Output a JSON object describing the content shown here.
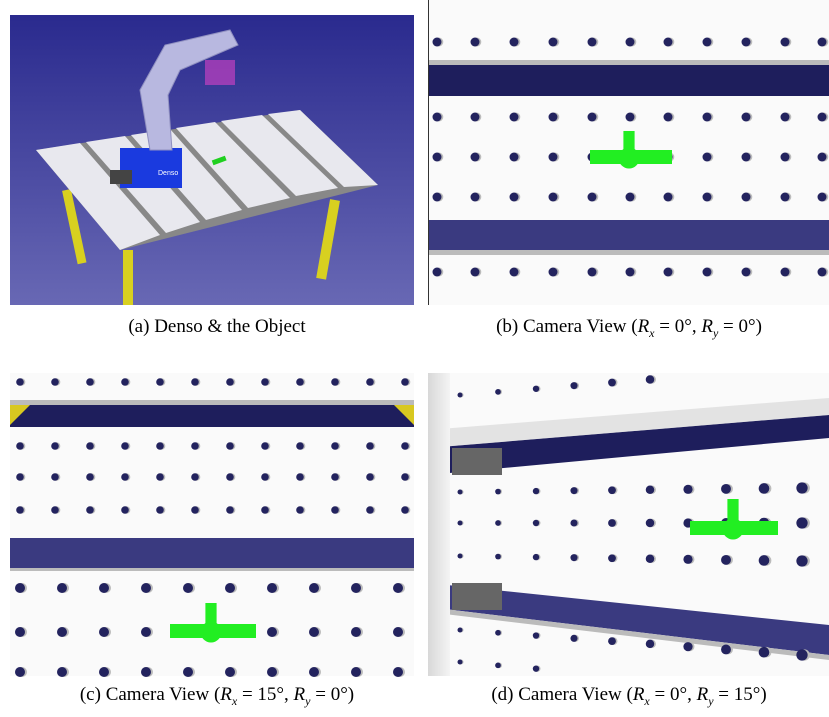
{
  "figure": {
    "panels": [
      {
        "caption": [
          {
            "t": "(a) Denso & the Object"
          }
        ],
        "label": "Denso"
      },
      {
        "caption": [
          {
            "t": "(b) Camera View ("
          },
          {
            "i": "R",
            "sub": "x"
          },
          {
            "t": " = 0°, "
          },
          {
            "i": "R",
            "sub": "y"
          },
          {
            "t": " = 0°)"
          }
        ]
      },
      {
        "caption": [
          {
            "t": "(c) Camera View ("
          },
          {
            "i": "R",
            "sub": "x"
          },
          {
            "t": " = 15°, "
          },
          {
            "i": "R",
            "sub": "y"
          },
          {
            "t": " = 0°)"
          }
        ]
      },
      {
        "caption": [
          {
            "t": "(d) Camera View ("
          },
          {
            "i": "R",
            "sub": "x"
          },
          {
            "t": " = 0°, "
          },
          {
            "i": "R",
            "sub": "y"
          },
          {
            "t": " = 15°)"
          }
        ]
      }
    ]
  }
}
